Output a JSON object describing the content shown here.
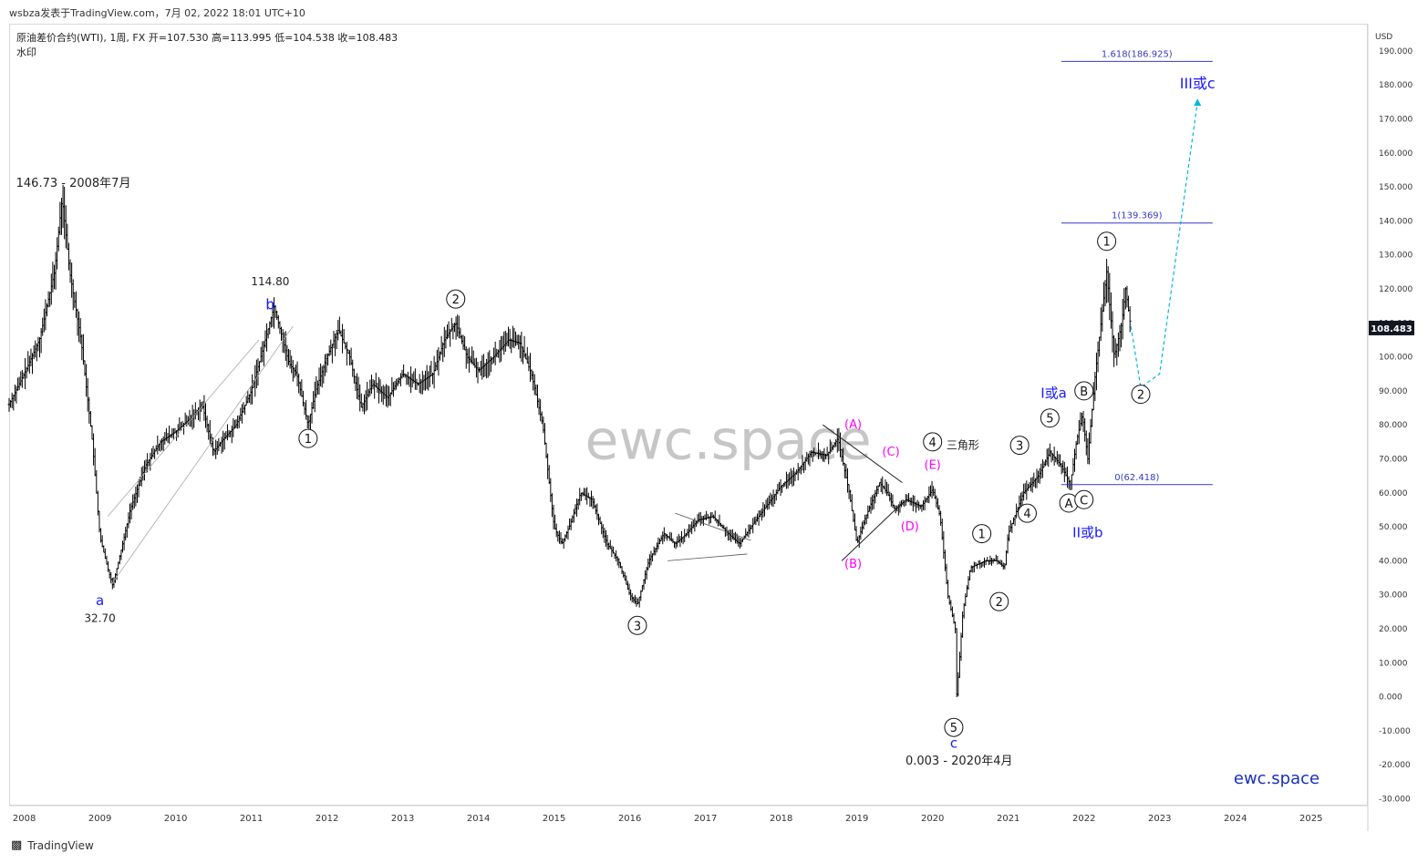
{
  "header": {
    "published_by": "wsbza发表于TradingView.com，7月 02, 2022 18:01 UTC+10",
    "symbol_line": "原油差价合约(WTI), 1周, FX  开=107.530  高=113.995  低=104.538  收=108.483",
    "watermark_label": "水印"
  },
  "footer": {
    "brand": "TradingView"
  },
  "colors": {
    "bar": "#000000",
    "blue": "#1a1aff",
    "magenta": "#ff00ff",
    "cyan": "#00b7e0",
    "fib": "#3838c8",
    "watermark": "#c6c6c6"
  },
  "chart_data": {
    "type": "bar",
    "price_unit": "USD",
    "last_price": "108.483",
    "y_ticks": [
      "190.000",
      "180.000",
      "170.000",
      "160.000",
      "150.000",
      "140.000",
      "130.000",
      "120.000",
      "110.000",
      "100.000",
      "90.000",
      "80.000",
      "70.000",
      "60.000",
      "50.000",
      "40.000",
      "30.000",
      "20.000",
      "10.000",
      "0.000",
      "-10.000",
      "-20.000",
      "-30.000"
    ],
    "x_ticks": [
      "2008",
      "2009",
      "2010",
      "2011",
      "2012",
      "2013",
      "2014",
      "2015",
      "2016",
      "2017",
      "2018",
      "2019",
      "2020",
      "2021",
      "2022",
      "2023",
      "2024",
      "2025"
    ],
    "ylim": [
      -32,
      198
    ],
    "xlim": [
      2007.8,
      2025.75
    ],
    "watermark": "ewc.space",
    "brand_mark": "ewc.space",
    "price_path": [
      [
        2007.8,
        86
      ],
      [
        2008.0,
        95
      ],
      [
        2008.2,
        105
      ],
      [
        2008.4,
        125
      ],
      [
        2008.5,
        146.7
      ],
      [
        2008.6,
        125
      ],
      [
        2008.75,
        105
      ],
      [
        2008.9,
        75
      ],
      [
        2009.0,
        47
      ],
      [
        2009.1,
        38
      ],
      [
        2009.17,
        32.7
      ],
      [
        2009.3,
        45
      ],
      [
        2009.4,
        55
      ],
      [
        2009.6,
        68
      ],
      [
        2009.8,
        75
      ],
      [
        2010.0,
        78
      ],
      [
        2010.2,
        82
      ],
      [
        2010.35,
        86
      ],
      [
        2010.5,
        72
      ],
      [
        2010.6,
        75
      ],
      [
        2010.8,
        80
      ],
      [
        2011.0,
        90
      ],
      [
        2011.15,
        102
      ],
      [
        2011.3,
        114.8
      ],
      [
        2011.5,
        98
      ],
      [
        2011.6,
        95
      ],
      [
        2011.75,
        80
      ],
      [
        2011.85,
        90
      ],
      [
        2012.0,
        100
      ],
      [
        2012.15,
        108
      ],
      [
        2012.3,
        100
      ],
      [
        2012.45,
        85
      ],
      [
        2012.6,
        92
      ],
      [
        2012.8,
        88
      ],
      [
        2013.0,
        95
      ],
      [
        2013.2,
        92
      ],
      [
        2013.4,
        95
      ],
      [
        2013.55,
        105
      ],
      [
        2013.7,
        110
      ],
      [
        2013.85,
        100
      ],
      [
        2014.0,
        96
      ],
      [
        2014.2,
        100
      ],
      [
        2014.4,
        105
      ],
      [
        2014.55,
        104
      ],
      [
        2014.7,
        95
      ],
      [
        2014.85,
        80
      ],
      [
        2015.0,
        50
      ],
      [
        2015.1,
        45
      ],
      [
        2015.2,
        50
      ],
      [
        2015.35,
        60
      ],
      [
        2015.5,
        58
      ],
      [
        2015.7,
        45
      ],
      [
        2015.85,
        40
      ],
      [
        2016.0,
        30
      ],
      [
        2016.1,
        27
      ],
      [
        2016.25,
        40
      ],
      [
        2016.45,
        48
      ],
      [
        2016.6,
        45
      ],
      [
        2016.75,
        48
      ],
      [
        2016.9,
        52
      ],
      [
        2017.1,
        53
      ],
      [
        2017.3,
        48
      ],
      [
        2017.45,
        45
      ],
      [
        2017.6,
        50
      ],
      [
        2017.8,
        56
      ],
      [
        2018.0,
        62
      ],
      [
        2018.2,
        66
      ],
      [
        2018.4,
        72
      ],
      [
        2018.6,
        71
      ],
      [
        2018.75,
        76
      ],
      [
        2018.9,
        60
      ],
      [
        2019.0,
        45
      ],
      [
        2019.1,
        52
      ],
      [
        2019.3,
        63
      ],
      [
        2019.4,
        60
      ],
      [
        2019.5,
        55
      ],
      [
        2019.65,
        58
      ],
      [
        2019.85,
        56
      ],
      [
        2020.0,
        61
      ],
      [
        2020.1,
        53
      ],
      [
        2020.2,
        30
      ],
      [
        2020.3,
        20
      ],
      [
        2020.32,
        0.003
      ],
      [
        2020.4,
        25
      ],
      [
        2020.5,
        38
      ],
      [
        2020.7,
        40
      ],
      [
        2020.85,
        40
      ],
      [
        2020.95,
        38
      ],
      [
        2021.0,
        48
      ],
      [
        2021.2,
        60
      ],
      [
        2021.4,
        65
      ],
      [
        2021.55,
        72
      ],
      [
        2021.7,
        68
      ],
      [
        2021.82,
        62.4
      ],
      [
        2021.9,
        75
      ],
      [
        2021.98,
        83
      ],
      [
        2022.05,
        70
      ],
      [
        2022.15,
        95
      ],
      [
        2022.25,
        115
      ],
      [
        2022.3,
        125
      ],
      [
        2022.4,
        100
      ],
      [
        2022.5,
        110
      ],
      [
        2022.55,
        120
      ],
      [
        2022.62,
        108.5
      ]
    ],
    "annotations": {
      "high_label": "146.73 - 2008年7月",
      "low_label": "32.70",
      "wave_a": "a",
      "b_price": "114.80",
      "wave_b": "b",
      "c_low": "0.003 - 2020年4月",
      "wave_c": "c",
      "triangle": "三角形",
      "i_or_a": "I或a",
      "ii_or_b": "II或b",
      "iii_or_c": "III或c"
    },
    "circled": [
      {
        "t": "1",
        "x": 2011.75,
        "y": 76
      },
      {
        "t": "2",
        "x": 2013.7,
        "y": 117
      },
      {
        "t": "3",
        "x": 2016.1,
        "y": 21
      },
      {
        "t": "4",
        "x": 2020.0,
        "y": 75
      },
      {
        "t": "5",
        "x": 2020.28,
        "y": -9
      },
      {
        "t": "1",
        "x": 2020.65,
        "y": 48
      },
      {
        "t": "2",
        "x": 2020.88,
        "y": 28
      },
      {
        "t": "3",
        "x": 2021.15,
        "y": 74
      },
      {
        "t": "4",
        "x": 2021.25,
        "y": 54
      },
      {
        "t": "5",
        "x": 2021.55,
        "y": 82
      },
      {
        "t": "A",
        "x": 2021.8,
        "y": 57
      },
      {
        "t": "B",
        "x": 2022.0,
        "y": 90
      },
      {
        "t": "C",
        "x": 2022.0,
        "y": 58
      },
      {
        "t": "1",
        "x": 2022.3,
        "y": 134
      },
      {
        "t": "2",
        "x": 2022.75,
        "y": 89
      }
    ],
    "magenta_labels": [
      {
        "t": "(A)",
        "x": 2018.95,
        "y": 79
      },
      {
        "t": "(B)",
        "x": 2018.95,
        "y": 38
      },
      {
        "t": "(C)",
        "x": 2019.45,
        "y": 71
      },
      {
        "t": "(D)",
        "x": 2019.7,
        "y": 49
      },
      {
        "t": "(E)",
        "x": 2020.0,
        "y": 67
      }
    ],
    "fib_levels": [
      {
        "label": "1.618(186.925)",
        "value": 186.925
      },
      {
        "label": "1(139.369)",
        "value": 139.369
      },
      {
        "label": "0(62.418)",
        "value": 62.418
      }
    ]
  }
}
